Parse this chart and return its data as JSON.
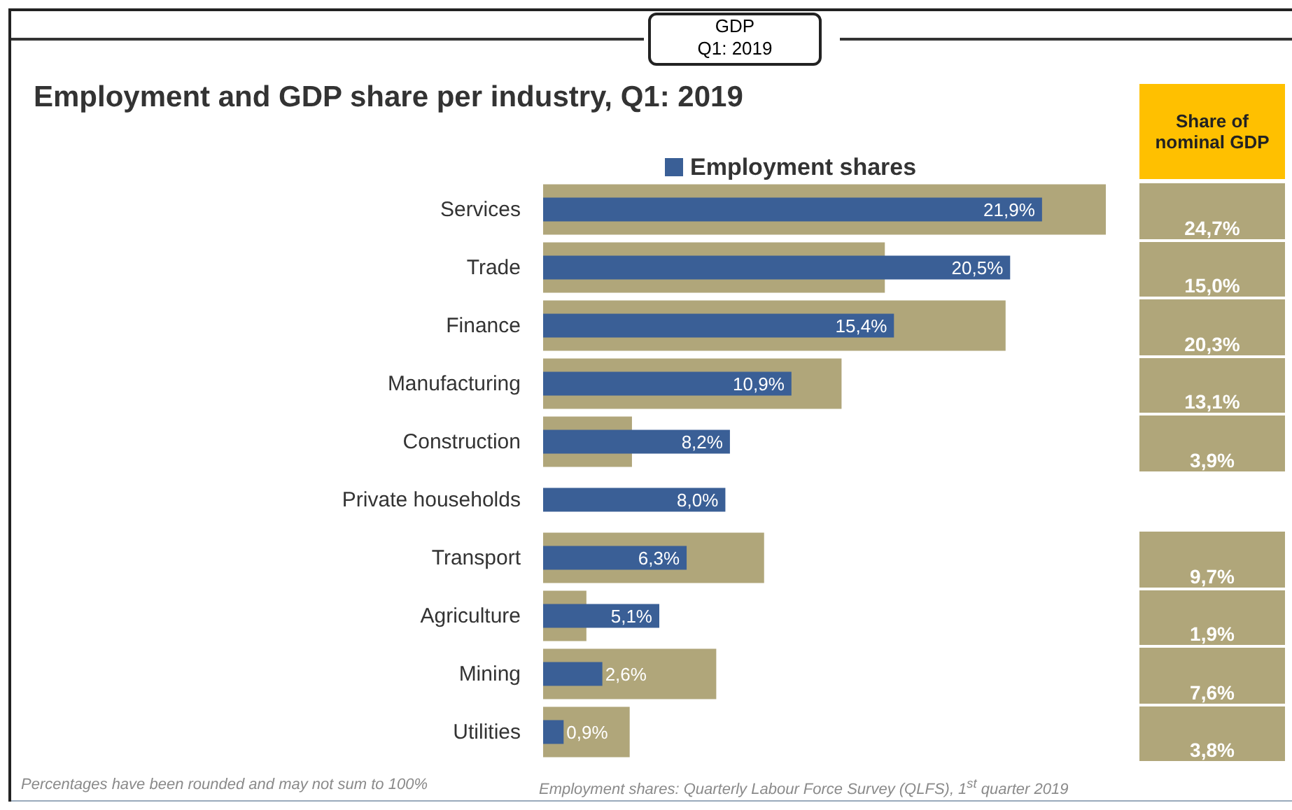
{
  "chart_data": {
    "type": "bar",
    "orientation": "horizontal",
    "title": "Employment and GDP share per industry, Q1: 2019",
    "annotations": [
      "GDP\nQ1: 2019",
      "Percentages have been rounded and may not sum to 100%",
      "Employment shares: Quarterly Labour Force Survey (QLFS), 1$^{st}$ quarter 2019"
    ],
    "categories": [
      "Services",
      "Trade",
      "Finance",
      "Manufacturing",
      "Construction",
      "Private households",
      "Transport",
      "Agriculture",
      "Mining",
      "Utilities"
    ],
    "series": [
      {
        "name": "Share of nominal GDP",
        "color": "#b0a67a",
        "values": [
          24.7,
          15.0,
          20.3,
          13.1,
          3.9,
          null,
          9.7,
          1.9,
          7.6,
          3.8
        ],
        "value_labels": [
          "24,7%",
          "15,0%",
          "20,3%",
          "13,1%",
          "3,9%",
          null,
          "9,7%",
          "1,9%",
          "7,6%",
          "3,8%"
        ]
      },
      {
        "name": "Employment shares",
        "color": "#3a5f96",
        "values": [
          21.9,
          20.5,
          15.4,
          10.9,
          8.2,
          8.0,
          6.3,
          5.1,
          2.6,
          0.9
        ],
        "value_labels": [
          "21,9%",
          "20,5%",
          "15,4%",
          "10,9%",
          "8,2%",
          "8,0%",
          "6,3%",
          "5,1%",
          "2,6%",
          "0,9%"
        ]
      }
    ],
    "legend": "top",
    "grid": false
  }
}
